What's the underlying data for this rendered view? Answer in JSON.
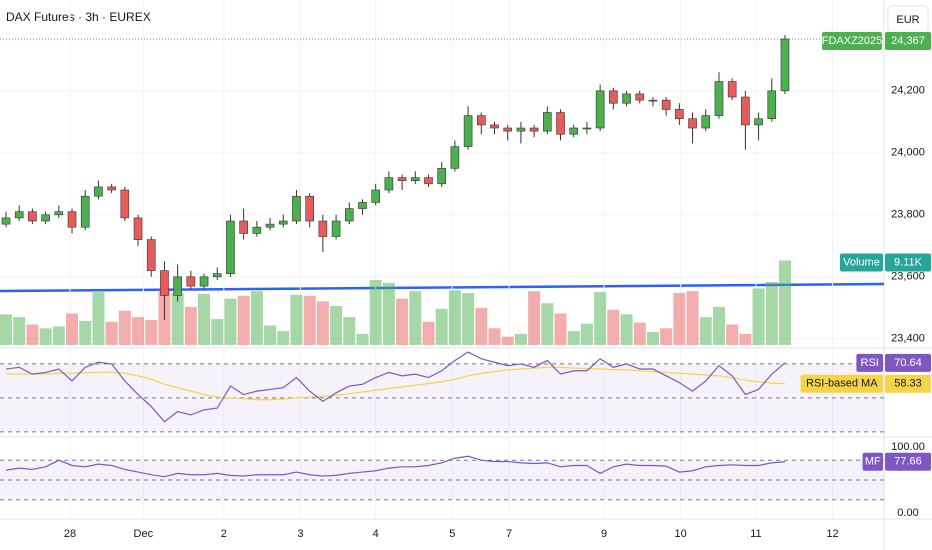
{
  "chart_data": {
    "type": "candlestick",
    "title": "DAX Futures · 3h · EUREX",
    "currency": "EUR",
    "symbol": "FDAXZ2025",
    "up_color": "#4caf50",
    "down_color": "#e85b5b",
    "xlim": [
      -0.4545,
      66.5
    ],
    "xticks": [
      {
        "value": 4.85,
        "label": "28"
      },
      {
        "value": 10.4,
        "label": "Dec"
      },
      {
        "value": 16.5,
        "label": "2"
      },
      {
        "value": 22.3,
        "label": "3"
      },
      {
        "value": 28,
        "label": "4"
      },
      {
        "value": 33.8,
        "label": "5"
      },
      {
        "value": 38.1,
        "label": "7"
      },
      {
        "value": 45.3,
        "label": "9"
      },
      {
        "value": 51.1,
        "label": "10"
      },
      {
        "value": 56.8,
        "label": "11"
      },
      {
        "value": 62.6,
        "label": "12"
      }
    ],
    "ylim": [
      23380,
      24493
    ],
    "yticks": [
      {
        "value": 24200,
        "label": "24,200"
      },
      {
        "value": 24000,
        "label": "24,000"
      },
      {
        "value": 23800,
        "label": "23,800"
      },
      {
        "value": 23600,
        "label": "23,600"
      },
      {
        "value": 23400,
        "label": "23,400"
      }
    ],
    "last_price_label": "24,367",
    "candles": [
      [
        23770,
        23810,
        23760,
        23790
      ],
      [
        23790,
        23830,
        23780,
        23810
      ],
      [
        23810,
        23820,
        23770,
        23780
      ],
      [
        23780,
        23810,
        23770,
        23800
      ],
      [
        23800,
        23830,
        23790,
        23810
      ],
      [
        23810,
        23820,
        23740,
        23760
      ],
      [
        23760,
        23880,
        23750,
        23860
      ],
      [
        23860,
        23910,
        23850,
        23890
      ],
      [
        23890,
        23900,
        23870,
        23880
      ],
      [
        23880,
        23890,
        23780,
        23790
      ],
      [
        23790,
        23800,
        23700,
        23720
      ],
      [
        23720,
        23730,
        23600,
        23620
      ],
      [
        23620,
        23650,
        23460,
        23540
      ],
      [
        23540,
        23640,
        23520,
        23600
      ],
      [
        23600,
        23620,
        23560,
        23570
      ],
      [
        23570,
        23610,
        23560,
        23600
      ],
      [
        23600,
        23630,
        23590,
        23610
      ],
      [
        23610,
        23800,
        23600,
        23780
      ],
      [
        23780,
        23820,
        23720,
        23740
      ],
      [
        23740,
        23780,
        23730,
        23760
      ],
      [
        23760,
        23790,
        23750,
        23770
      ],
      [
        23770,
        23800,
        23760,
        23780
      ],
      [
        23780,
        23880,
        23770,
        23860
      ],
      [
        23860,
        23870,
        23760,
        23780
      ],
      [
        23780,
        23800,
        23680,
        23730
      ],
      [
        23730,
        23800,
        23720,
        23780
      ],
      [
        23780,
        23840,
        23770,
        23820
      ],
      [
        23820,
        23850,
        23800,
        23840
      ],
      [
        23840,
        23900,
        23830,
        23880
      ],
      [
        23880,
        23940,
        23870,
        23920
      ],
      [
        23920,
        23930,
        23880,
        23910
      ],
      [
        23910,
        23940,
        23900,
        23920
      ],
      [
        23920,
        23930,
        23890,
        23900
      ],
      [
        23900,
        23970,
        23890,
        23950
      ],
      [
        23950,
        24040,
        23940,
        24020
      ],
      [
        24020,
        24150,
        24010,
        24120
      ],
      [
        24120,
        24130,
        24060,
        24090
      ],
      [
        24090,
        24100,
        24060,
        24080
      ],
      [
        24080,
        24090,
        24040,
        24070
      ],
      [
        24070,
        24100,
        24030,
        24080
      ],
      [
        24080,
        24090,
        24050,
        24070
      ],
      [
        24070,
        24150,
        24060,
        24130
      ],
      [
        24130,
        24140,
        24040,
        24060
      ],
      [
        24060,
        24090,
        24050,
        24080
      ],
      [
        24080,
        24100,
        24060,
        24080
      ],
      [
        24080,
        24220,
        24070,
        24200
      ],
      [
        24200,
        24210,
        24140,
        24160
      ],
      [
        24160,
        24200,
        24150,
        24190
      ],
      [
        24190,
        24200,
        24160,
        24170
      ],
      [
        24170,
        24180,
        24150,
        24170
      ],
      [
        24170,
        24180,
        24120,
        24140
      ],
      [
        24140,
        24160,
        24090,
        24110
      ],
      [
        24110,
        24130,
        24030,
        24080
      ],
      [
        24080,
        24140,
        24070,
        24120
      ],
      [
        24120,
        24260,
        24110,
        24230
      ],
      [
        24230,
        24240,
        24170,
        24180
      ],
      [
        24180,
        24200,
        24010,
        24090
      ],
      [
        24090,
        24130,
        24040,
        24110
      ],
      [
        24110,
        24240,
        24100,
        24200
      ],
      [
        24200,
        24380,
        24190,
        24367
      ]
    ],
    "volume": {
      "name": "Volume",
      "ylim": [
        0,
        9700
      ],
      "last_value_label": "9.11K",
      "values": [
        3300,
        3000,
        2200,
        1800,
        2000,
        3400,
        2600,
        5700,
        2500,
        3700,
        3000,
        2700,
        6000,
        5600,
        4100,
        5500,
        2800,
        5000,
        5300,
        5800,
        2100,
        1500,
        5400,
        5300,
        4700,
        4200,
        3000,
        1200,
        7000,
        6700,
        5000,
        5800,
        2500,
        3900,
        5900,
        5600,
        4000,
        1800,
        900,
        1200,
        5800,
        4500,
        3400,
        1500,
        2300,
        5700,
        3800,
        3300,
        2400,
        1400,
        1800,
        5600,
        5800,
        3000,
        4100,
        2200,
        1200,
        6100,
        6800,
        9110
      ]
    },
    "rsi": {
      "ylim": [
        27.6,
        78.2
      ],
      "bands": [
        70,
        50,
        30
      ],
      "series": [
        {
          "name": "RSI",
          "color": "#7e57c2",
          "last_value_label": "70.64",
          "values": [
            67,
            68,
            64,
            65,
            67,
            60,
            68,
            71,
            70,
            60,
            52,
            45,
            36,
            42,
            40,
            43,
            44,
            57,
            52,
            54,
            55,
            56,
            62,
            54,
            48,
            53,
            57,
            58,
            62,
            65,
            63,
            64,
            62,
            66,
            72,
            77,
            73,
            71,
            69,
            70,
            68,
            72,
            64,
            66,
            66,
            73,
            68,
            70,
            67,
            67,
            63,
            59,
            54,
            60,
            69,
            63,
            52,
            55,
            64,
            70.64
          ]
        },
        {
          "name": "RSI-based MA",
          "color": "#f5d547",
          "last_value_label": "58.33",
          "values": [
            64,
            64,
            64,
            64,
            64.5,
            64.5,
            64.8,
            65,
            65.2,
            64.5,
            63,
            61,
            58,
            56,
            54,
            52,
            50.5,
            50,
            49.5,
            49,
            49,
            49.3,
            50,
            50.5,
            51,
            51.5,
            52.5,
            53.5,
            54.5,
            55.5,
            56.5,
            57.5,
            58.5,
            59.5,
            61,
            63,
            64.5,
            65.5,
            66.5,
            67,
            67.5,
            68,
            68,
            67.5,
            67.3,
            67,
            66.7,
            66.5,
            66,
            65.5,
            65,
            64.5,
            64,
            63.5,
            63,
            62,
            60.5,
            59.5,
            58.8,
            58.33
          ]
        }
      ]
    },
    "mf": {
      "ylim": [
        0,
        100
      ],
      "yticks": [
        {
          "value": 100,
          "label": "100.00"
        },
        {
          "value": 0,
          "label": "0.00"
        }
      ],
      "bands": [
        80,
        50,
        20
      ],
      "series": [
        {
          "name": "MF",
          "color": "#7e57c2",
          "last_value_label": "77.66",
          "values": [
            65,
            68,
            66,
            70,
            80,
            72,
            70,
            74,
            72,
            66,
            62,
            58,
            55,
            60,
            58,
            58,
            60,
            57,
            56,
            58,
            58,
            58,
            62,
            58,
            56,
            57,
            60,
            62,
            64,
            68,
            70,
            70,
            72,
            76,
            83,
            86,
            80,
            78,
            78,
            76,
            75,
            76,
            70,
            72,
            72,
            60,
            70,
            74,
            72,
            72,
            71,
            62,
            64,
            70,
            72,
            73,
            72,
            72,
            76,
            77.66
          ]
        }
      ]
    }
  }
}
